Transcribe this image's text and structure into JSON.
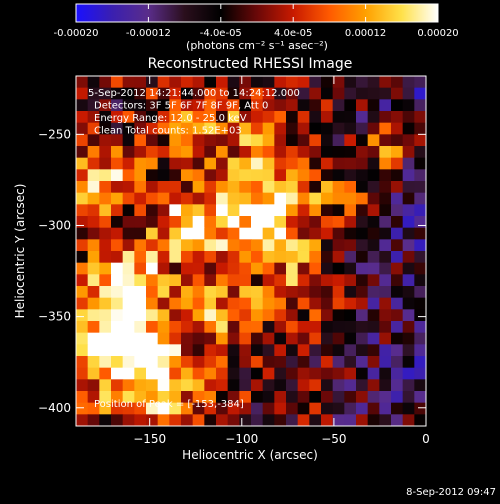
{
  "colorbar": {
    "ticks": [
      -0.0002,
      -0.00012,
      -4e-05,
      4e-05,
      0.00012,
      0.0002
    ],
    "tick_labels": [
      "-0.00020",
      "-0.00012",
      "-4.0e-05",
      "4.0e-05",
      "0.00012",
      "0.00020"
    ],
    "unit_label": "(photons cm⁻² s⁻¹ asec⁻²)",
    "range": [
      -0.0002,
      0.0002
    ]
  },
  "chart_data": {
    "type": "heatmap",
    "title": "Reconstructed RHESSI Image",
    "xlabel": "Heliocentric X (arcsec)",
    "ylabel": "Heliocentric Y (arcsec)",
    "xlim": [
      -190,
      0
    ],
    "ylim": [
      -410,
      -218
    ],
    "x_ticks": [
      -150,
      -100,
      -50,
      0
    ],
    "y_ticks": [
      -250,
      -300,
      -350,
      -400
    ],
    "info_lines": [
      "5-Sep-2012 14:21:44.000 to 14:24:12.000",
      "Detectors: 3F 5F 6F 7F 8F 9F, Att 0",
      "Energy Range: 12.0 - 25.0 keV",
      "Clean     Total counts: 1.52E+03"
    ],
    "peak_label": "Position of Peak = [-153,-384]",
    "peak_position": [
      -153,
      -384
    ],
    "colormap": [
      "#1a10ff",
      "#3a1fb0",
      "#5a2d8a",
      "#2a0e1c",
      "#000000",
      "#6a0808",
      "#c81a00",
      "#ff5a00",
      "#ffa000",
      "#ffe14a",
      "#ffffff"
    ],
    "grid_size": [
      30,
      30
    ]
  },
  "footer": {
    "timestamp": "8-Sep-2012 09:47"
  }
}
